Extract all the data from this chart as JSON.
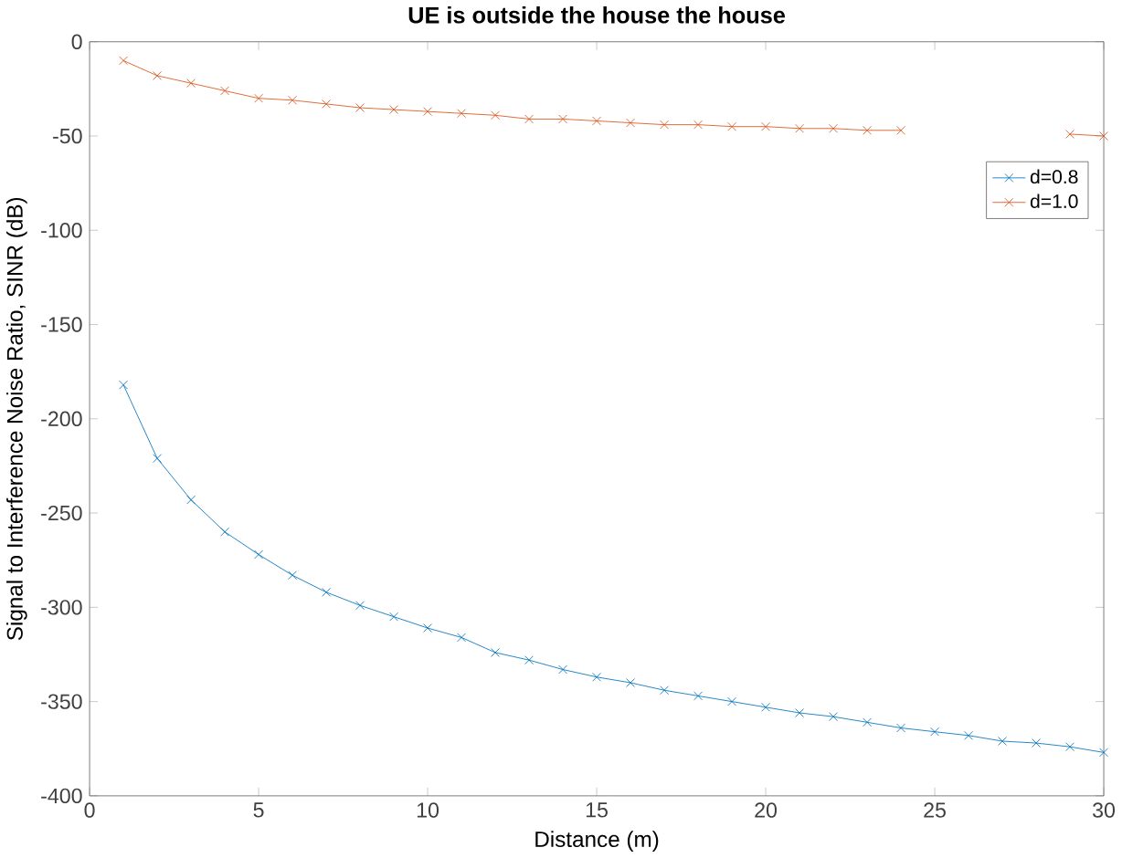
{
  "chart_data": {
    "type": "line",
    "title": "UE is outside the house the house",
    "xlabel": "Distance (m)",
    "ylabel": "Signal to Interference Noise Ratio, SINR (dB)",
    "x": [
      1,
      2,
      3,
      4,
      5,
      6,
      7,
      8,
      9,
      10,
      11,
      12,
      13,
      14,
      15,
      16,
      17,
      18,
      19,
      20,
      21,
      22,
      23,
      24,
      25,
      26,
      27,
      28,
      29,
      30
    ],
    "series": [
      {
        "name": "d=0.8",
        "color": "#0072bd",
        "values": [
          -182,
          -221,
          -243,
          -260,
          -272,
          -283,
          -292,
          -299,
          -305,
          -311,
          -316,
          -324,
          -328,
          -333,
          -337,
          -340,
          -344,
          -347,
          -350,
          -353,
          -356,
          -358,
          -361,
          -364,
          -366,
          -368,
          -371,
          -372,
          -374,
          -377
        ]
      },
      {
        "name": "d=1.0",
        "color": "#d95319",
        "values": [
          -10,
          -18,
          -22,
          -26,
          -30,
          -31,
          -33,
          -35,
          -36,
          -37,
          -38,
          -39,
          -41,
          -41,
          -42,
          -43,
          -44,
          -44,
          -45,
          -45,
          -46,
          -46,
          -47,
          -47,
          null,
          null,
          null,
          null,
          -49,
          -50
        ]
      }
    ],
    "xlim": [
      0,
      30
    ],
    "ylim": [
      -400,
      0
    ],
    "xticks": [
      0,
      5,
      10,
      15,
      20,
      25,
      30
    ],
    "yticks": [
      -400,
      -350,
      -300,
      -250,
      -200,
      -150,
      -100,
      -50,
      0
    ],
    "grid": false,
    "legend": "top right",
    "marker": "cross",
    "line_style": "solid"
  }
}
